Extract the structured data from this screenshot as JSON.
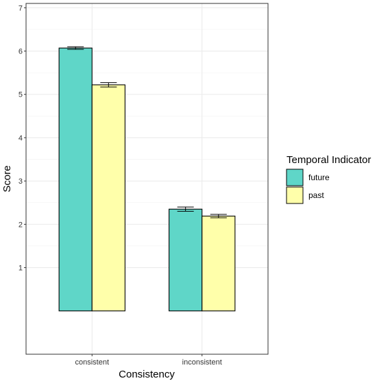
{
  "chart_data": {
    "type": "bar",
    "title": "",
    "xlabel": "Consistency",
    "ylabel": "Score",
    "categories": [
      "consistent",
      "inconsistent"
    ],
    "ylim": [
      -1,
      7.1
    ],
    "yticks": [
      1,
      2,
      3,
      4,
      5,
      6,
      7
    ],
    "grid": true,
    "legend": {
      "title": "Temporal Indicator",
      "placement": "right"
    },
    "series": [
      {
        "name": "future",
        "color": "#5fd6c8",
        "values": [
          6.07,
          2.35
        ],
        "error": [
          0.03,
          0.05
        ]
      },
      {
        "name": "past",
        "color": "#ffffaa",
        "values": [
          5.22,
          2.19
        ],
        "error": [
          0.05,
          0.04
        ]
      }
    ]
  }
}
